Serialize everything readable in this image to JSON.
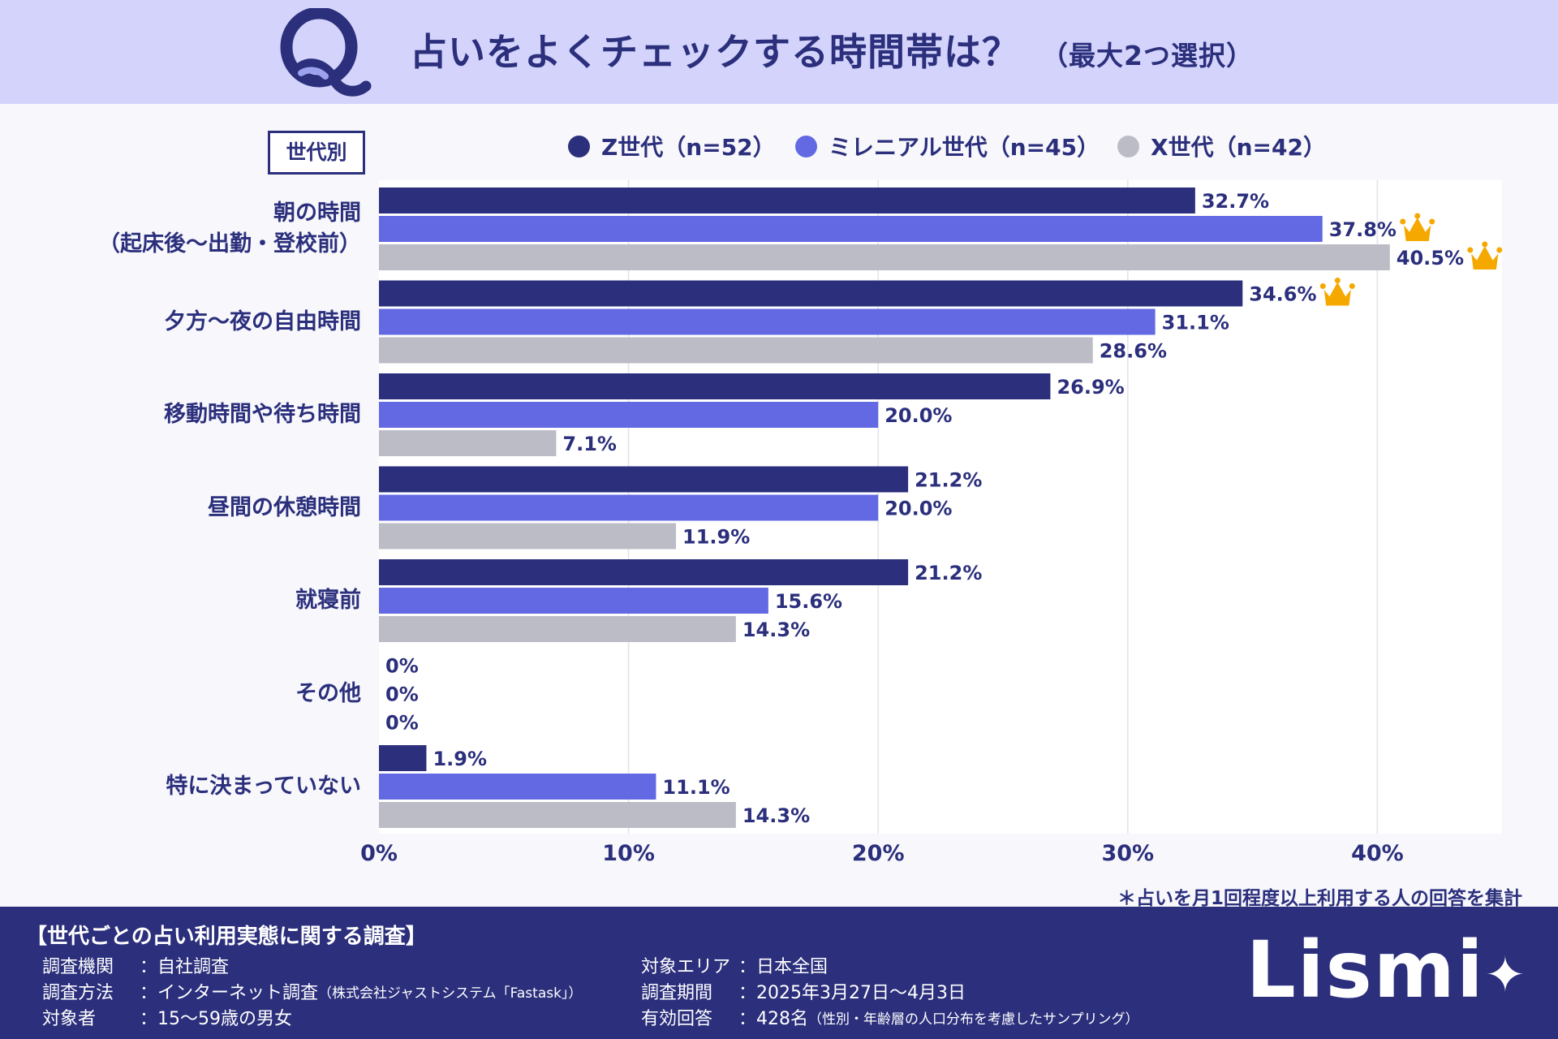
{
  "header": {
    "title": "占いをよくチェックする時間帯は？",
    "subtitle": "（最大2つ選択）"
  },
  "generation_label": "世代別",
  "colors": {
    "z": "#2b2f7c",
    "millennial": "#6269e3",
    "x": "#bcbcc6",
    "crown": "#f5a800"
  },
  "chart_data": {
    "type": "bar",
    "orientation": "horizontal",
    "title": "占いをよくチェックする時間帯は？（最大2つ選択）",
    "categories": [
      [
        "朝の時間",
        "（起床後〜出勤・登校前）"
      ],
      [
        "夕方〜夜の自由時間"
      ],
      [
        "移動時間や待ち時間"
      ],
      [
        "昼間の休憩時間"
      ],
      [
        "就寝前"
      ],
      [
        "その他"
      ],
      [
        "特に決まっていない"
      ]
    ],
    "series": [
      {
        "name": "Z世代（n=52）",
        "values": [
          32.7,
          34.6,
          26.9,
          21.2,
          21.2,
          0,
          1.9
        ],
        "labels": [
          "32.7%",
          "34.6%",
          "26.9%",
          "21.2%",
          "21.2%",
          "0%",
          "1.9%"
        ]
      },
      {
        "name": "ミレニアル世代（n=45）",
        "values": [
          37.8,
          31.1,
          20.0,
          20.0,
          15.6,
          0,
          11.1
        ],
        "labels": [
          "37.8%",
          "31.1%",
          "20.0%",
          "20.0%",
          "15.6%",
          "0%",
          "11.1%"
        ]
      },
      {
        "name": "X世代（n=42）",
        "values": [
          40.5,
          28.6,
          7.1,
          11.9,
          14.3,
          0,
          14.3
        ],
        "labels": [
          "40.5%",
          "28.6%",
          "7.1%",
          "11.9%",
          "14.3%",
          "0%",
          "14.3%"
        ]
      }
    ],
    "crowns": [
      {
        "series": 1,
        "category": 0
      },
      {
        "series": 2,
        "category": 0
      },
      {
        "series": 0,
        "category": 1
      }
    ],
    "xlim": [
      0,
      45
    ],
    "xticks": [
      0,
      10,
      20,
      30,
      40
    ],
    "xtick_labels": [
      "0%",
      "10%",
      "20%",
      "30%",
      "40%"
    ],
    "grid": true,
    "legend": "top"
  },
  "note": "＊占いを月1回程度以上利用する人の回答を集計",
  "footer": {
    "title": "【世代ごとの占い利用実態に関する調査】",
    "left_rows": [
      {
        "key": "調査機関",
        "value": "：自社調査",
        "small": ""
      },
      {
        "key": "調査方法",
        "value": "：インターネット調査",
        "small": "（株式会社ジャストシステム「Fastask」）"
      },
      {
        "key": "対象者",
        "value": "：15〜59歳の男女",
        "small": ""
      }
    ],
    "right_rows": [
      {
        "key": "対象エリア",
        "value": "：日本全国",
        "small": ""
      },
      {
        "key": "調査期間",
        "value": "：2025年3月27日〜4月3日",
        "small": ""
      },
      {
        "key": "有効回答",
        "value": "：428名",
        "small": "（性別・年齢層の人口分布を考慮したサンプリング）"
      }
    ],
    "logo": "Lismi"
  }
}
